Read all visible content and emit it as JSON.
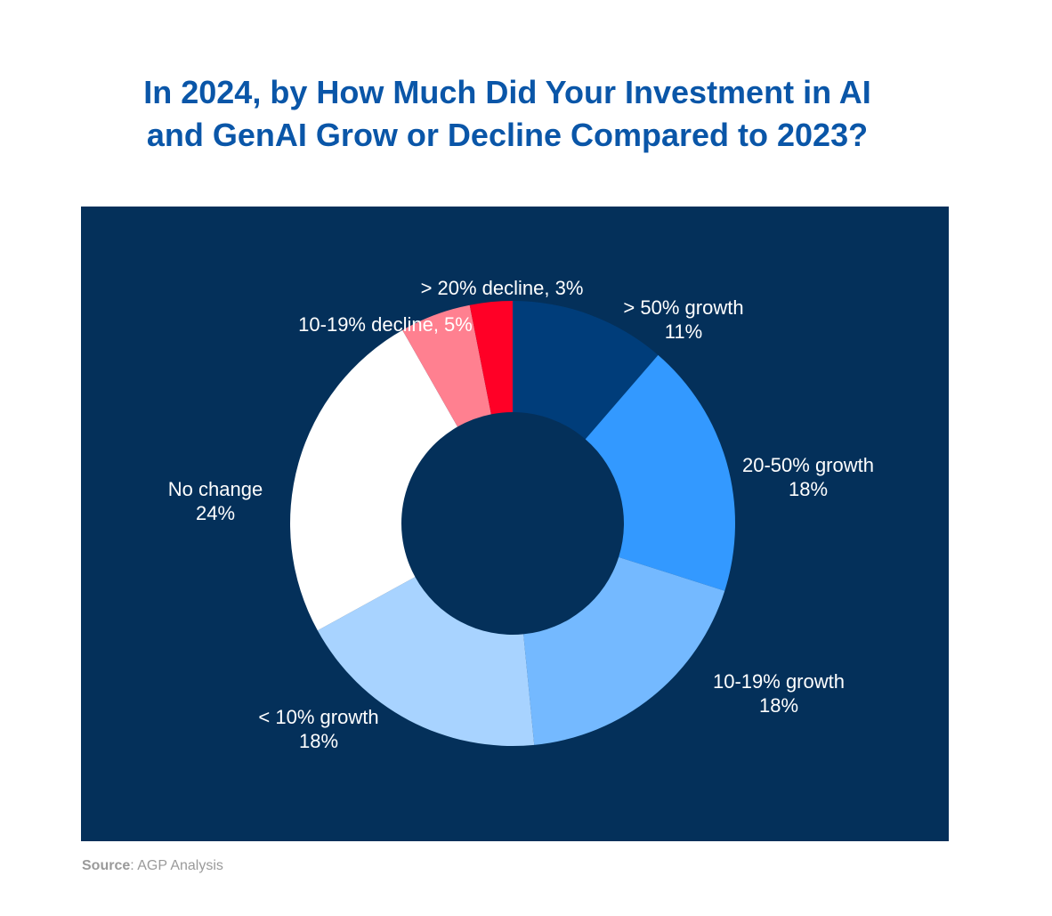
{
  "title": {
    "line1": "In 2024, by How Much Did Your Investment in AI",
    "line2": "and GenAI Grow or Decline Compared to 2023?"
  },
  "chart_data": {
    "type": "pie",
    "donut": true,
    "title": "In 2024, by How Much Did Your Investment in AI and GenAI Grow or Decline Compared to 2023?",
    "legend": "none",
    "background": "#04305a",
    "slices": [
      {
        "label": "> 50% growth",
        "value": 11,
        "value_label": "11%",
        "color": "#003d7a",
        "label_style": "two-line"
      },
      {
        "label": "20-50% growth",
        "value": 18,
        "value_label": "18%",
        "color": "#3399ff",
        "label_style": "two-line"
      },
      {
        "label": "10-19% growth",
        "value": 18,
        "value_label": "18%",
        "color": "#74b9ff",
        "label_style": "two-line"
      },
      {
        "label": "< 10% growth",
        "value": 18,
        "value_label": "18%",
        "color": "#a8d3ff",
        "label_style": "two-line"
      },
      {
        "label": "No change",
        "value": 24,
        "value_label": "24%",
        "color": "#ffffff",
        "label_style": "two-line"
      },
      {
        "label": "10-19% decline",
        "value": 5,
        "value_label": "5%",
        "color": "#ff8090",
        "label_style": "inline"
      },
      {
        "label": "> 20% decline",
        "value": 3,
        "value_label": "3%",
        "color": "#ff0026",
        "label_style": "inline"
      }
    ]
  },
  "source": {
    "prefix": "Source",
    "text": ": AGP Analysis"
  }
}
